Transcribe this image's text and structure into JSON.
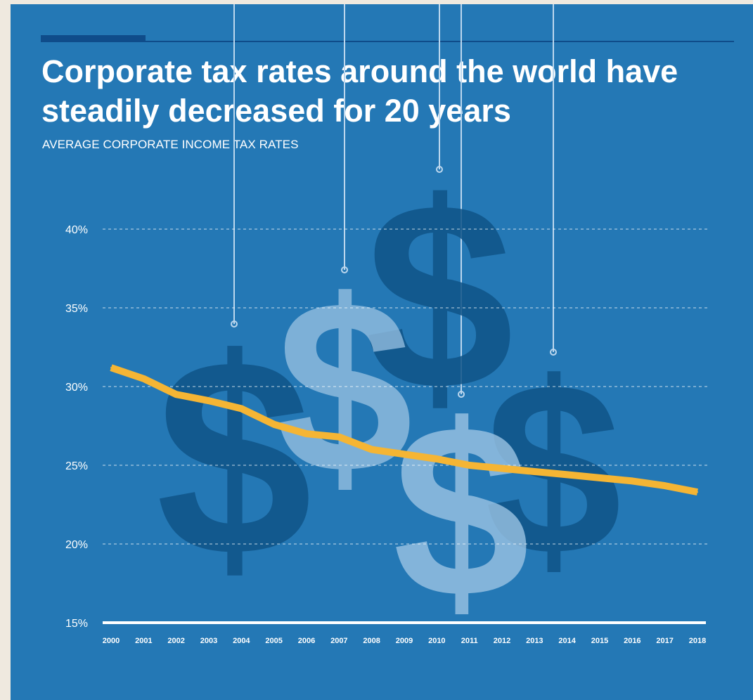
{
  "title": "Corporate tax rates around the world have steadily decreased for 20 years",
  "subtitle": "AVERAGE CORPORATE INCOME TAX RATES",
  "colors": {
    "background": "#2478b5",
    "line": "#f5b534",
    "dollar_dark": "#0f5387",
    "dollar_light": "#9bc3e3"
  },
  "decoration": {
    "icon": "dollar-sign-icon",
    "glyph": "$"
  },
  "chart_data": {
    "type": "line",
    "title": "Corporate tax rates around the world have steadily decreased for 20 years",
    "subtitle": "AVERAGE CORPORATE INCOME TAX RATES",
    "xlabel": "",
    "ylabel": "",
    "x": [
      "2000",
      "2001",
      "2002",
      "2003",
      "2004",
      "2005",
      "2006",
      "2007",
      "2008",
      "2009",
      "2010",
      "2011",
      "2012",
      "2013",
      "2014",
      "2015",
      "2016",
      "2017",
      "2018"
    ],
    "series": [
      {
        "values": [
          31.2,
          30.5,
          29.5,
          29.1,
          28.6,
          27.6,
          27.0,
          26.8,
          26.0,
          25.7,
          25.4,
          25.0,
          24.8,
          24.6,
          24.4,
          24.2,
          24.0,
          23.7,
          23.3
        ]
      }
    ],
    "ylim": [
      15,
      40
    ],
    "yticks": [
      "15%",
      "20%",
      "25%",
      "30%",
      "35%",
      "40%"
    ],
    "ytick_values": [
      15,
      20,
      25,
      30,
      35,
      40
    ],
    "grid": true,
    "legend": "none"
  }
}
